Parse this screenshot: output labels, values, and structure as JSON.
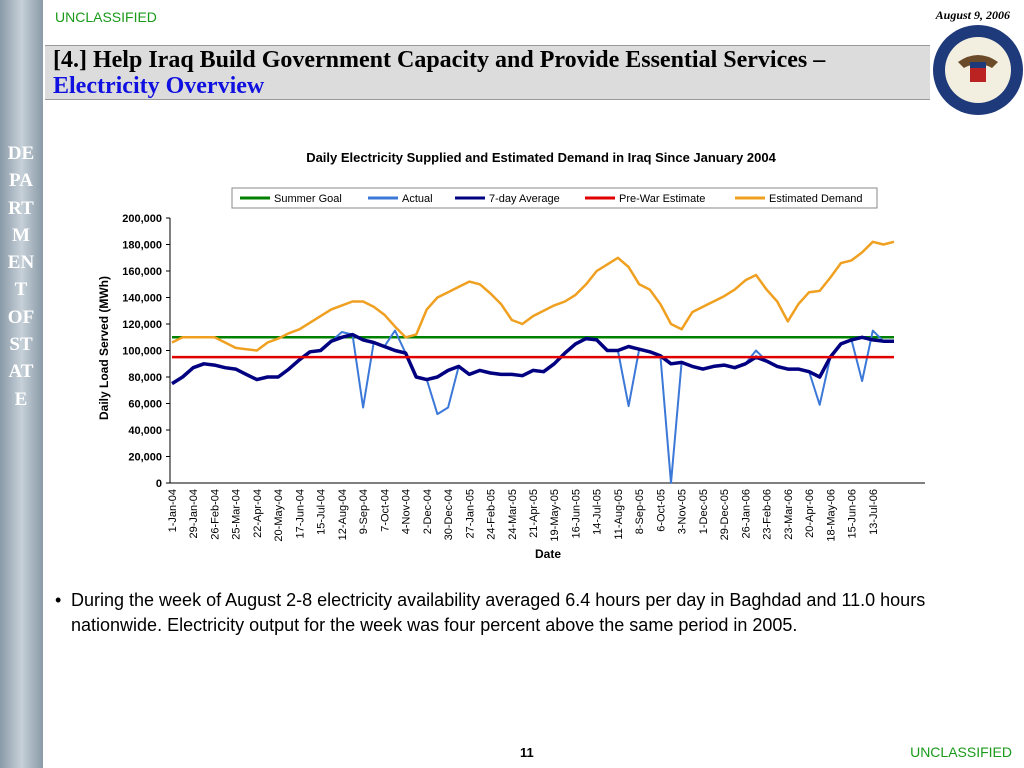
{
  "header": {
    "classification": "UNCLASSIFIED",
    "date": "August 9, 2006",
    "title": "[4.] Help Iraq Build Government Capacity and Provide Essential Services –",
    "title_highlight": "Electricity Overview"
  },
  "sidebar": "DEPARTMENT OF STATE",
  "chart_data": {
    "type": "line",
    "title": "Daily Electricity Supplied and Estimated Demand in Iraq Since January 2004",
    "x_label": "Date",
    "y_label": "Daily Load Served (MWh)",
    "categories": [
      "1-Jan-04",
      null,
      "29-Jan-04",
      null,
      "26-Feb-04",
      null,
      "25-Mar-04",
      null,
      "22-Apr-04",
      null,
      "20-May-04",
      null,
      "17-Jun-04",
      null,
      "15-Jul-04",
      null,
      "12-Aug-04",
      null,
      "9-Sep-04",
      null,
      "7-Oct-04",
      null,
      "4-Nov-04",
      null,
      "2-Dec-04",
      null,
      "30-Dec-04",
      null,
      "27-Jan-05",
      null,
      "24-Feb-05",
      null,
      "24-Mar-05",
      null,
      "21-Apr-05",
      null,
      "19-May-05",
      null,
      "16-Jun-05",
      null,
      "14-Jul-05",
      null,
      "11-Aug-05",
      null,
      "8-Sep-05",
      null,
      "6-Oct-05",
      null,
      "3-Nov-05",
      null,
      "1-Dec-05",
      null,
      "29-Dec-05",
      null,
      "26-Jan-06",
      null,
      "23-Feb-06",
      null,
      "23-Mar-06",
      null,
      "20-Apr-06",
      null,
      "18-May-06",
      null,
      "15-Jun-06",
      null,
      "13-Jul-06",
      null,
      null
    ],
    "ylim": [
      0,
      200000
    ],
    "yticks": [
      0,
      {
        "value": 20000,
        "label": "20,000"
      },
      {
        "value": 40000,
        "label": "40,000"
      },
      {
        "value": 60000,
        "label": "60,000"
      },
      {
        "value": 80000,
        "label": "80,000"
      },
      {
        "value": 100000,
        "label": "100,000"
      },
      {
        "value": 120000,
        "label": "120,000"
      },
      {
        "value": 140000,
        "label": "140,000"
      },
      {
        "value": 160000,
        "label": "160,000"
      },
      {
        "value": 180000,
        "label": "180,000"
      },
      {
        "value": 200000,
        "label": "200,000"
      }
    ],
    "grid": false,
    "legend": "top",
    "series": [
      {
        "name": "Summer Goal",
        "color": "#008000",
        "width": 2.5,
        "values": [
          110000,
          110000,
          110000,
          110000,
          110000,
          110000,
          110000,
          110000,
          110000,
          110000,
          110000,
          110000,
          110000,
          110000,
          110000,
          110000,
          110000,
          110000,
          110000,
          110000,
          110000,
          110000,
          110000,
          110000,
          110000,
          110000,
          110000,
          110000,
          110000,
          110000,
          110000,
          110000,
          110000,
          110000,
          110000,
          110000,
          110000,
          110000,
          110000,
          110000,
          110000,
          110000,
          110000,
          110000,
          110000,
          110000,
          110000,
          110000,
          110000,
          110000,
          110000,
          110000,
          110000,
          110000,
          110000,
          110000,
          110000,
          110000,
          110000,
          110000,
          110000,
          110000,
          110000,
          110000,
          110000,
          110000,
          110000,
          110000,
          110000
        ]
      },
      {
        "name": "Actual",
        "color": "#3b78d8",
        "width": 2,
        "values": [
          75000,
          80000,
          87000,
          90000,
          89000,
          87000,
          86000,
          82000,
          78000,
          80000,
          80000,
          86000,
          93000,
          99000,
          100000,
          107000,
          114000,
          112000,
          57000,
          106000,
          103000,
          115000,
          98000,
          80000,
          78000,
          52000,
          57000,
          88000,
          82000,
          85000,
          83000,
          82000,
          82000,
          81000,
          85000,
          84000,
          90000,
          98000,
          105000,
          109000,
          108000,
          100000,
          100000,
          58000,
          101000,
          99000,
          96000,
          0,
          91000,
          88000,
          86000,
          88000,
          89000,
          87000,
          90000,
          100000,
          92000,
          88000,
          86000,
          86000,
          84000,
          59000,
          95000,
          105000,
          108000,
          77000,
          115000,
          107000,
          107000
        ]
      },
      {
        "name": "7-day Average",
        "color": "#000080",
        "width": 3.5,
        "values": [
          75000,
          80000,
          87000,
          90000,
          89000,
          87000,
          86000,
          82000,
          78000,
          80000,
          80000,
          86000,
          93000,
          99000,
          100000,
          107000,
          110000,
          112000,
          108000,
          106000,
          103000,
          100000,
          98000,
          80000,
          78000,
          80000,
          85000,
          88000,
          82000,
          85000,
          83000,
          82000,
          82000,
          81000,
          85000,
          84000,
          90000,
          98000,
          105000,
          109000,
          108000,
          100000,
          100000,
          103000,
          101000,
          99000,
          96000,
          90000,
          91000,
          88000,
          86000,
          88000,
          89000,
          87000,
          90000,
          95000,
          92000,
          88000,
          86000,
          86000,
          84000,
          80000,
          95000,
          105000,
          108000,
          110000,
          108000,
          107000,
          107000
        ]
      },
      {
        "name": "Pre-War Estimate",
        "color": "#e00000",
        "width": 2.5,
        "values": [
          95000,
          95000,
          95000,
          95000,
          95000,
          95000,
          95000,
          95000,
          95000,
          95000,
          95000,
          95000,
          95000,
          95000,
          95000,
          95000,
          95000,
          95000,
          95000,
          95000,
          95000,
          95000,
          95000,
          95000,
          95000,
          95000,
          95000,
          95000,
          95000,
          95000,
          95000,
          95000,
          95000,
          95000,
          95000,
          95000,
          95000,
          95000,
          95000,
          95000,
          95000,
          95000,
          95000,
          95000,
          95000,
          95000,
          95000,
          95000,
          95000,
          95000,
          95000,
          95000,
          95000,
          95000,
          95000,
          95000,
          95000,
          95000,
          95000,
          95000,
          95000,
          95000,
          95000,
          95000,
          95000,
          95000,
          95000,
          95000,
          95000
        ]
      },
      {
        "name": "Estimated Demand",
        "color": "#f0a020",
        "width": 2.5,
        "values": [
          106000,
          110000,
          110000,
          110000,
          110000,
          106000,
          102000,
          101000,
          100000,
          106000,
          109000,
          113000,
          116000,
          121000,
          126000,
          131000,
          134000,
          137000,
          137000,
          133000,
          127000,
          118000,
          110000,
          112000,
          131000,
          140000,
          144000,
          148000,
          152000,
          150000,
          143000,
          135000,
          123000,
          120000,
          126000,
          130000,
          134000,
          137000,
          142000,
          150000,
          160000,
          165000,
          170000,
          163000,
          150000,
          146000,
          135000,
          120000,
          116000,
          129000,
          133000,
          137000,
          141000,
          146000,
          153000,
          157000,
          146000,
          137000,
          122000,
          135000,
          144000,
          145000,
          155000,
          166000,
          168000,
          174000,
          182000,
          180000,
          182000
        ]
      }
    ]
  },
  "bullets": [
    "During the week of August 2-8 electricity availability averaged 6.4 hours per day in Baghdad and 11.0 hours nationwide.  Electricity output for the week was four percent above the same period in 2005."
  ],
  "footer": {
    "page": "11",
    "classification": "UNCLASSIFIED"
  }
}
